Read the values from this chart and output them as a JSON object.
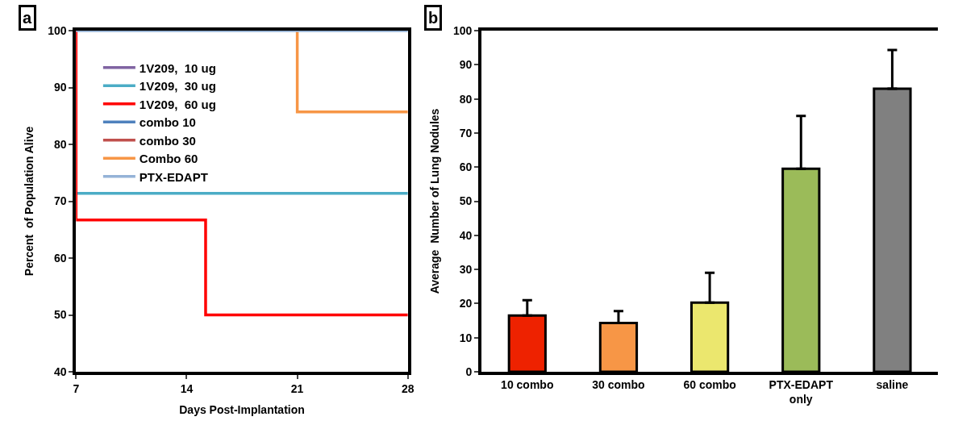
{
  "chart_data": [
    {
      "type": "step",
      "xlabel": "Days Post-Implantation",
      "ylabel": "Percent  of Population Alive",
      "annotations": [
        "a"
      ],
      "xlim": [
        7,
        28
      ],
      "xticks": [
        7,
        14,
        21,
        28
      ],
      "ylim": [
        40,
        100
      ],
      "yticks": [
        40,
        50,
        60,
        70,
        80,
        90,
        100
      ],
      "legend": "top left",
      "marker": "none",
      "line_style": "solid",
      "series": [
        {
          "name": "1V209,  10 ug",
          "color": "#8064a2",
          "x": [
            null
          ],
          "values": [
            null
          ]
        },
        {
          "name": "1V209,  30 ug",
          "color": "#4bacc6",
          "x": [
            7,
            28
          ],
          "values": [
            71.4,
            71.4
          ]
        },
        {
          "name": "1V209,  60 ug",
          "color": "#ff0000",
          "x": [
            7,
            7,
            15.2,
            28
          ],
          "values": [
            100,
            66.7,
            50,
            50
          ]
        },
        {
          "name": "combo 10",
          "color": "#4f81bd",
          "x": [
            null
          ],
          "values": [
            null
          ]
        },
        {
          "name": "combo 30",
          "color": "#c0504d",
          "x": [
            null
          ],
          "values": [
            null
          ]
        },
        {
          "name": "Combo 60",
          "color": "#f79646",
          "x": [
            21,
            21,
            28
          ],
          "values": [
            100,
            85.7,
            85.7
          ]
        },
        {
          "name": "PTX-EDAPT",
          "color": "#95b3d7",
          "x": [
            7,
            28
          ],
          "values": [
            100,
            100
          ]
        }
      ]
    },
    {
      "type": "bar",
      "ylabel": "Average  Number of Lung Nodules",
      "annotations": [
        "b"
      ],
      "categories": [
        "10 combo",
        "30 combo",
        "60 combo",
        "PTX-EDAPT\nonly",
        "saline"
      ],
      "values": [
        16.5,
        14.3,
        20.3,
        59.5,
        83.0
      ],
      "colors": [
        "#ee2200",
        "#f79646",
        "#ebe76e",
        "#9bbb59",
        "#808080"
      ],
      "errors": [
        [
          16.5,
          21.0
        ],
        [
          14.3,
          17.8
        ],
        [
          20.3,
          29.0
        ],
        [
          59.5,
          75.0
        ],
        [
          83.0,
          94.3
        ]
      ],
      "ylim": [
        0,
        100
      ],
      "yticks": [
        0,
        10,
        20,
        30,
        40,
        50,
        60,
        70,
        80,
        90,
        100
      ],
      "legend": false
    }
  ]
}
